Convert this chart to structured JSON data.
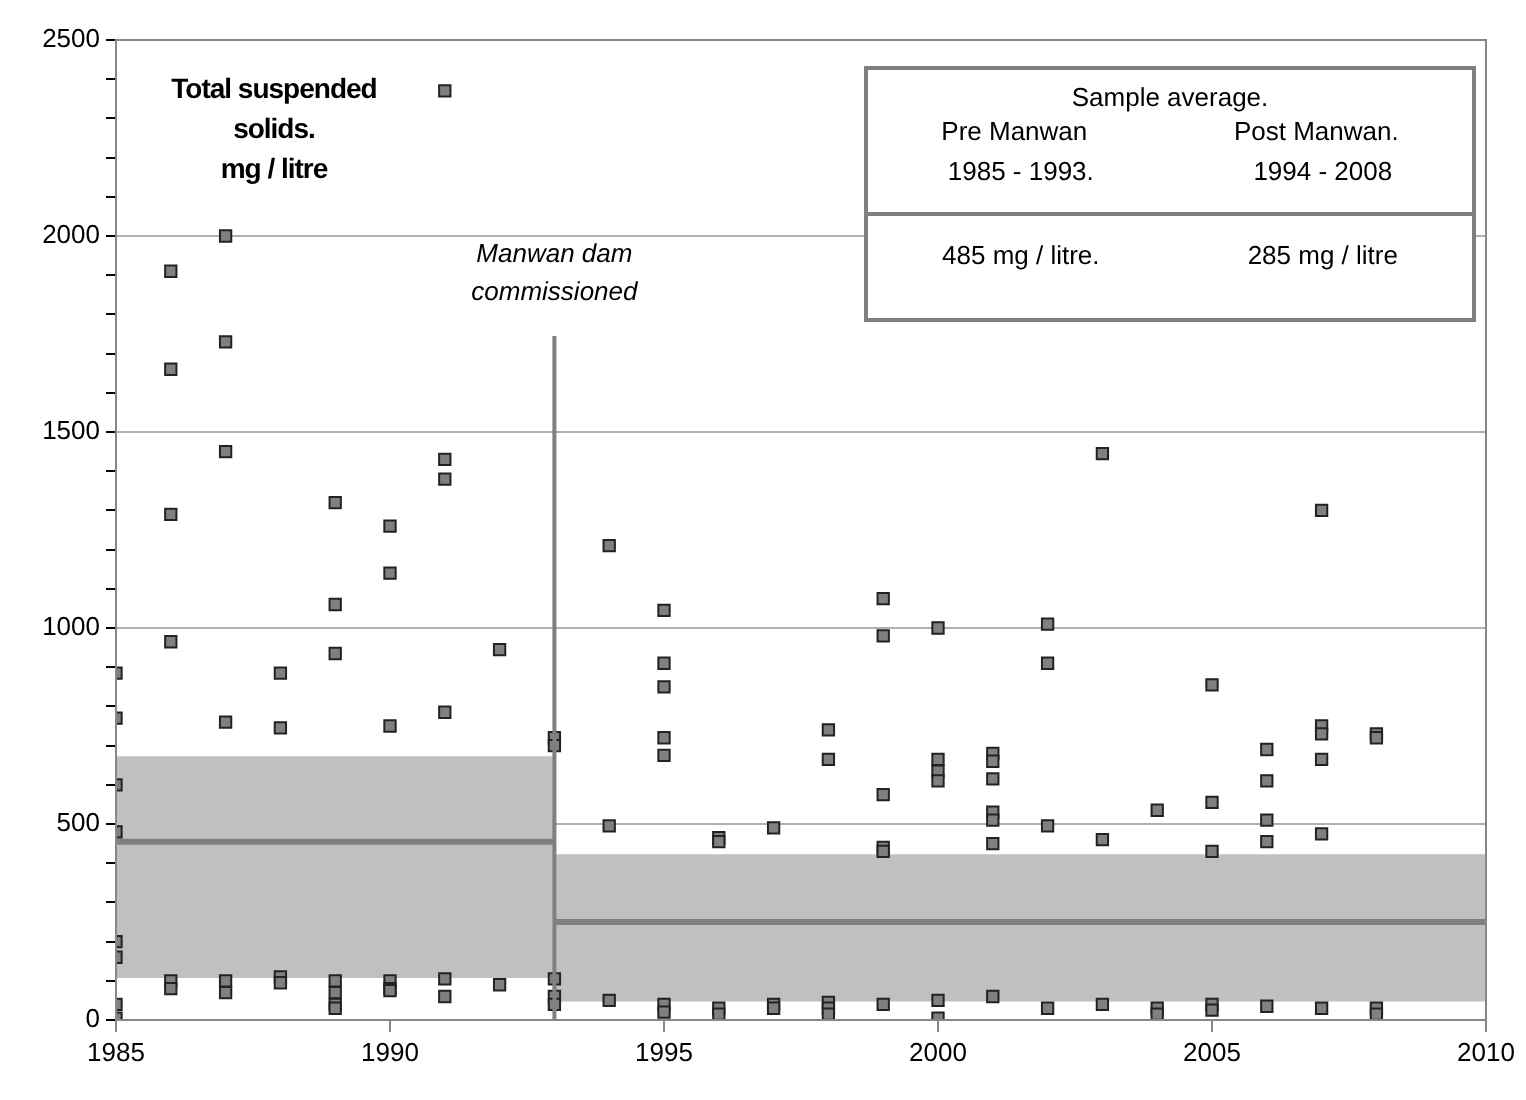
{
  "chart_data": {
    "type": "scatter",
    "title": "Total suspended\nsolids.\nmg / litre",
    "xlim": [
      1985,
      2010
    ],
    "xticks": [
      1985,
      1990,
      1995,
      2000,
      2005,
      2010
    ],
    "ylim": [
      0,
      2500
    ],
    "yticks": [
      0,
      {
        "value": 100,
        "label": null
      },
      {
        "value": 200,
        "label": null
      },
      {
        "value": 300,
        "label": null
      },
      {
        "value": 400,
        "label": null
      },
      500,
      {
        "value": 600,
        "label": null
      },
      {
        "value": 700,
        "label": null
      },
      {
        "value": 800,
        "label": null
      },
      {
        "value": 900,
        "label": null
      },
      1000,
      {
        "value": 1100,
        "label": null
      },
      {
        "value": 1200,
        "label": null
      },
      {
        "value": 1300,
        "label": null
      },
      {
        "value": 1400,
        "label": null
      },
      1500,
      {
        "value": 1600,
        "label": null
      },
      {
        "value": 1700,
        "label": null
      },
      {
        "value": 1800,
        "label": null
      },
      {
        "value": 1900,
        "label": null
      },
      2000,
      {
        "value": 2100,
        "label": null
      },
      {
        "value": 2200,
        "label": null
      },
      {
        "value": 2300,
        "label": null
      },
      {
        "value": 2400,
        "label": null
      },
      2500
    ],
    "grid": "y",
    "marker": "square",
    "legend": false,
    "series": [
      {
        "type": "line",
        "marker": "none",
        "color": "#808080",
        "x": [
          1985,
          1993
        ],
        "values": [
          455,
          455
        ],
        "lower": [
          107,
          107
        ],
        "upper": [
          673,
          673
        ]
      },
      {
        "type": "line",
        "marker": "none",
        "color": "#808080",
        "x": [
          1993,
          2010
        ],
        "values": [
          250,
          250
        ],
        "lower": [
          47,
          47
        ],
        "upper": [
          423,
          423
        ]
      },
      {
        "color": "#808080",
        "x": [
          1985,
          1985,
          1985,
          1985,
          1985,
          1985,
          1985,
          1985,
          1986,
          1986,
          1986,
          1986,
          1986,
          1986,
          1987,
          1987,
          1987,
          1987,
          1987,
          1987,
          1988,
          1988,
          1988,
          1988,
          1989,
          1989,
          1989,
          1989,
          1989,
          1989,
          1989,
          1990,
          1990,
          1990,
          1990,
          1990,
          1990,
          1991,
          1991,
          1991,
          1991,
          1991,
          1991,
          1992,
          1992,
          1993,
          1993,
          1993,
          1993,
          1993,
          1994,
          1994,
          1994,
          1995,
          1995,
          1995,
          1995,
          1995,
          1995,
          1995,
          1996,
          1996,
          1996,
          1996,
          1997,
          1997,
          1997,
          1998,
          1998,
          1998,
          1998,
          1998,
          1999,
          1999,
          1999,
          1999,
          1999,
          1999,
          2000,
          2000,
          2000,
          2000,
          2000,
          2000,
          2001,
          2001,
          2001,
          2001,
          2001,
          2001,
          2001,
          2002,
          2002,
          2002,
          2002,
          2003,
          2003,
          2003,
          2004,
          2004,
          2004,
          2005,
          2005,
          2005,
          2005,
          2005,
          2006,
          2006,
          2006,
          2006,
          2006,
          2007,
          2007,
          2007,
          2007,
          2007,
          2007,
          2008,
          2008,
          2008,
          2008
        ],
        "values": [
          885,
          770,
          600,
          480,
          200,
          160,
          40,
          5,
          1910,
          1660,
          1290,
          965,
          100,
          80,
          2000,
          1730,
          1450,
          760,
          100,
          70,
          885,
          745,
          110,
          95,
          1320,
          1060,
          935,
          100,
          70,
          40,
          30,
          1260,
          1140,
          750,
          100,
          80,
          75,
          2370,
          1430,
          1380,
          785,
          105,
          60,
          945,
          90,
          720,
          700,
          105,
          60,
          40,
          1210,
          495,
          50,
          1045,
          910,
          850,
          720,
          675,
          40,
          20,
          465,
          455,
          30,
          15,
          490,
          40,
          30,
          740,
          665,
          45,
          30,
          15,
          1075,
          980,
          575,
          440,
          430,
          40,
          1000,
          665,
          635,
          610,
          50,
          5,
          680,
          660,
          615,
          530,
          510,
          450,
          60,
          1010,
          910,
          495,
          30,
          1445,
          460,
          40,
          535,
          30,
          15,
          855,
          555,
          430,
          40,
          25,
          690,
          610,
          510,
          455,
          35,
          1300,
          750,
          730,
          665,
          475,
          30,
          730,
          720,
          30,
          15
        ]
      }
    ],
    "ref_lines": [
      {
        "axis": "x",
        "value": 1993,
        "label": "Manwan dam commissioned",
        "color": "#808080"
      }
    ],
    "annotations": [
      "Sample average.",
      "Pre Manwan",
      "1985 - 1993.",
      "Post Manwan.",
      "1994 - 2008",
      "485 mg / litre.",
      "285 mg / litre"
    ]
  }
}
